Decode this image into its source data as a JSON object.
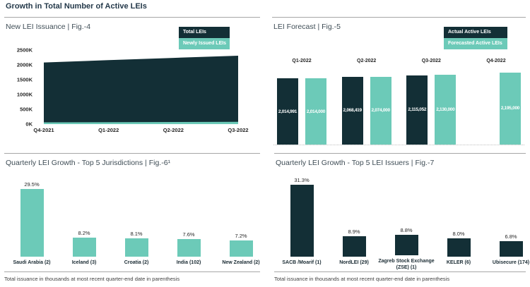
{
  "header": {
    "title": "Growth in Total Number of Active LEIs"
  },
  "colors": {
    "dark_navy": "#132F36",
    "teal": "#6CCAB8",
    "separator_gray": "#A6A6A6"
  },
  "chart_data": [
    {
      "id": "fig4",
      "type": "area",
      "title": "New LEI Issuance | Fig.-4",
      "categories": [
        "Q4-2021",
        "Q1-2022",
        "Q2-2022",
        "Q3-2022"
      ],
      "series": [
        {
          "name": "Total LEIs",
          "color": "#132F36",
          "values": [
            2080000,
            2160000,
            2235000,
            2310000
          ]
        },
        {
          "name": "Newly Issued LEIs",
          "color": "#6CCAB8",
          "values": [
            60000,
            65000,
            70000,
            75000
          ]
        }
      ],
      "ylabel_ticks": [
        "0K",
        "500K",
        "1000K",
        "1500K",
        "2000K",
        "2500K"
      ],
      "ylim": [
        0,
        2500000
      ],
      "grid": false,
      "legend_position": "top-right"
    },
    {
      "id": "fig5",
      "type": "bar",
      "title": "LEI Forecast | Fig.-5",
      "categories": [
        "Q1-2022",
        "Q2-2022",
        "Q3-2022",
        "Q4-2022"
      ],
      "series": [
        {
          "name": "Actual Active LEIs",
          "color": "#132F36",
          "values": [
            2014991,
            2068419,
            2115052,
            null
          ]
        },
        {
          "name": "Forecasted Active LEIs",
          "color": "#6CCAB8",
          "values": [
            2014000,
            2074000,
            2130000,
            2195000
          ]
        }
      ],
      "data_labels": [
        [
          "2,014,991",
          "2,068,419",
          "2,115,052",
          null
        ],
        [
          "2,014,000",
          "2,074,000",
          "2,130,000",
          "2,195,000"
        ]
      ],
      "ylim": [
        0,
        2300000
      ],
      "grid": false,
      "legend_position": "top-right"
    },
    {
      "id": "fig6",
      "type": "bar",
      "title": "Quarterly LEI Growth - Top 5 Jurisdictions | Fig.-6¹",
      "categories": [
        "Saudi Arabia (2)",
        "Iceland (3)",
        "Croatia (2)",
        "India (102)",
        "New Zealand (2)"
      ],
      "values": [
        29.5,
        8.2,
        8.1,
        7.6,
        7.2
      ],
      "data_labels": [
        "29.5%",
        "8.2%",
        "8.1%",
        "7.6%",
        "7.2%"
      ],
      "bar_color": "#6CCAB8",
      "ylim": [
        0,
        32
      ],
      "footnote": "Total issuance in thousands at most recent quarter-end date in parenthesis"
    },
    {
      "id": "fig7",
      "type": "bar",
      "title": "Quarterly LEI Growth - Top 5 LEI Issuers | Fig.-7",
      "categories": [
        "SACB /Moarif (1)",
        "NordLEI (29)",
        "Zagreb Stock Exchange (ZSE) (1)",
        "KELER (6)",
        "Ubisecure (174)"
      ],
      "values": [
        31.3,
        8.9,
        8.8,
        8.0,
        6.8
      ],
      "data_labels": [
        "31.3%",
        "8.9%",
        "8.8%",
        "8.0%",
        "6.8%"
      ],
      "bar_color": "#132F36",
      "ylim": [
        0,
        33
      ],
      "footnote": "Total issuance in thousands at most recent quarter-end date in parenthesis"
    }
  ]
}
